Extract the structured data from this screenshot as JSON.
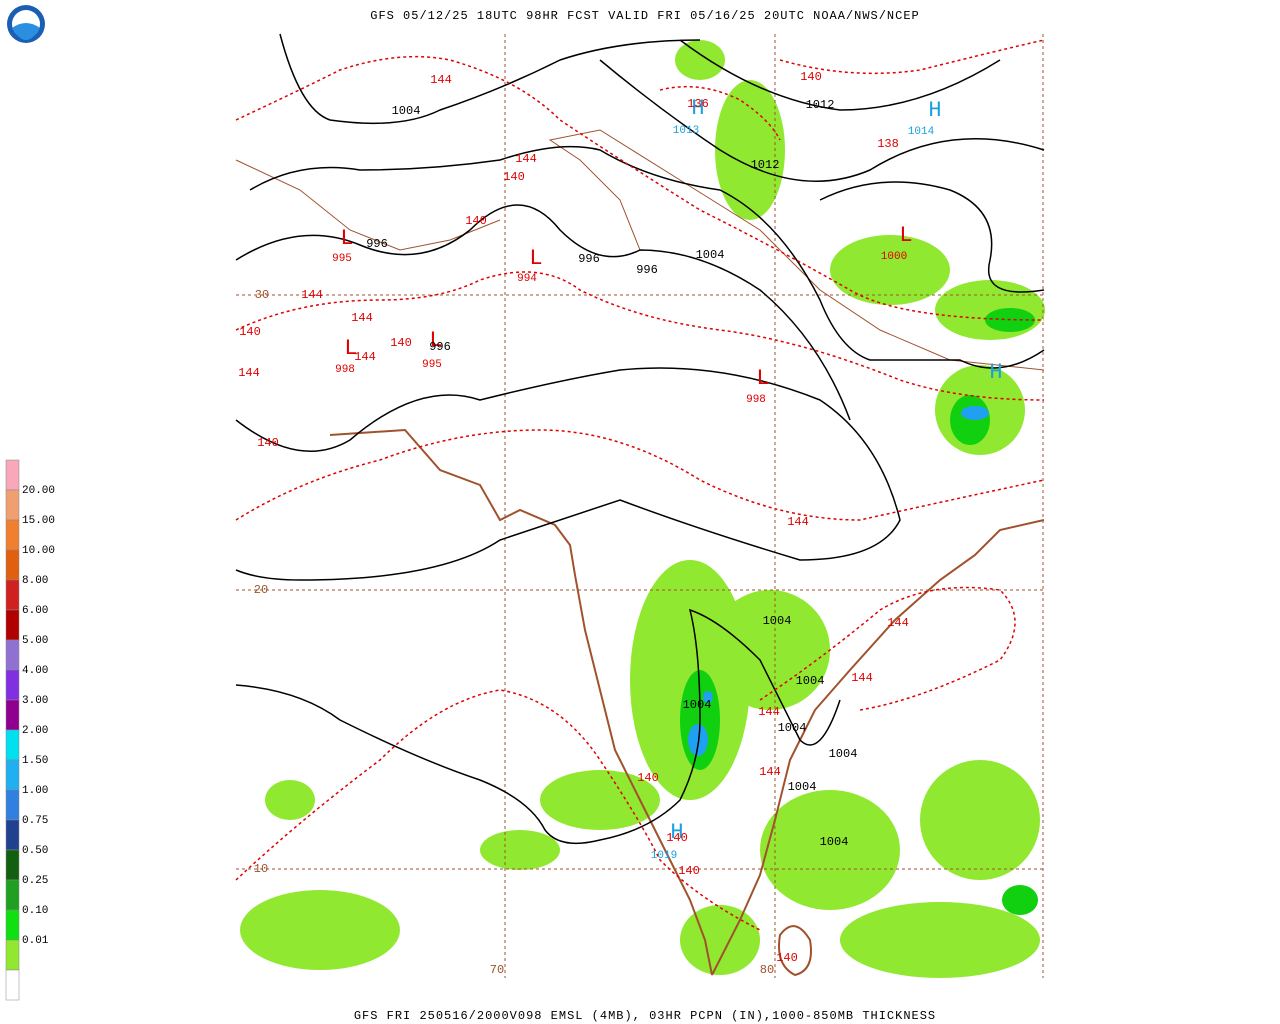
{
  "header": {
    "title": "GFS 05/12/25 18UTC 98HR FCST VALID FRI 05/16/25 20UTC NOAA/NWS/NCEP"
  },
  "footer": {
    "caption": "GFS FRI 250516/2000V098 EMSL (4MB), 03HR PCPN (IN),1000-850MB THICKNESS"
  },
  "legend": {
    "labels": [
      "20.00",
      "15.00",
      "10.00",
      "8.00",
      "6.00",
      "5.00",
      "4.00",
      "3.00",
      "2.00",
      "1.50",
      "1.00",
      "0.75",
      "0.50",
      "0.25",
      "0.10",
      "0.01"
    ]
  },
  "map": {
    "grid_labels": [
      "30",
      "20",
      "10",
      "70",
      "80"
    ],
    "centers": [
      {
        "symbol": "H",
        "value": "1013"
      },
      {
        "symbol": "H",
        "value": "1014"
      },
      {
        "symbol": "L",
        "value": "995"
      },
      {
        "symbol": "L",
        "value": "994"
      },
      {
        "symbol": "L",
        "value": "1000"
      },
      {
        "symbol": "L",
        "value": "998"
      },
      {
        "symbol": "L",
        "value": "995"
      },
      {
        "symbol": "L",
        "value": "998"
      },
      {
        "symbol": "H"
      },
      {
        "symbol": "H",
        "value": "1019"
      }
    ],
    "isobar_labels": [
      "1004",
      "1012",
      "1012",
      "996",
      "996",
      "996",
      "1004",
      "996",
      "1004",
      "1004",
      "1004",
      "1004",
      "1004",
      "1004",
      "1004"
    ],
    "thickness_labels": [
      "140",
      "144",
      "136",
      "138",
      "144",
      "140",
      "140",
      "144",
      "144",
      "140",
      "140",
      "144",
      "144",
      "140",
      "144",
      "144",
      "144",
      "144",
      "140",
      "144",
      "140",
      "140",
      "140"
    ]
  }
}
